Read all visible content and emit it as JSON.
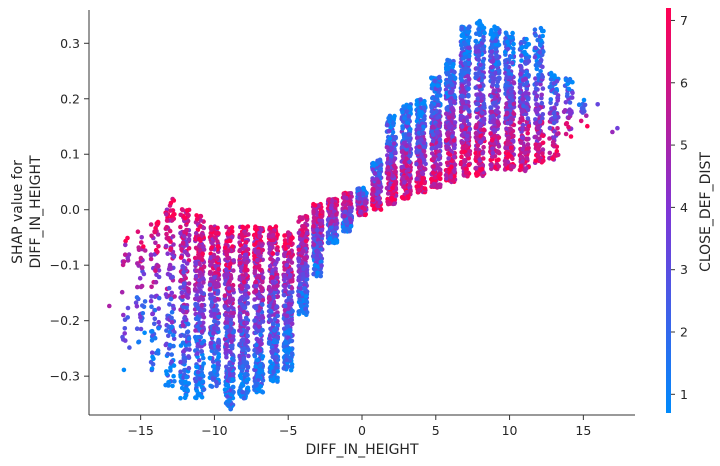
{
  "chart_data": {
    "type": "scatter",
    "title": "",
    "xlabel": "DIFF_IN_HEIGHT",
    "ylabel_lines": [
      "SHAP value for",
      "DIFF_IN_HEIGHT"
    ],
    "xlim": [
      -18.5,
      18.5
    ],
    "ylim": [
      -0.37,
      0.36
    ],
    "xticks": [
      -15,
      -10,
      -5,
      0,
      5,
      10,
      15
    ],
    "xtick_labels": [
      "−15",
      "−10",
      "−5",
      "0",
      "5",
      "10",
      "15"
    ],
    "yticks": [
      -0.3,
      -0.2,
      -0.1,
      0.0,
      0.1,
      0.2,
      0.3
    ],
    "ytick_labels": [
      "−0.3",
      "−0.2",
      "−0.1",
      "0.0",
      "0.1",
      "0.2",
      "0.3"
    ],
    "grid": false,
    "colorbar": {
      "label": "CLOSE_DEF_DIST",
      "range": [
        0.7,
        7.2
      ],
      "ticks": [
        1,
        2,
        3,
        4,
        5,
        6,
        7
      ],
      "tick_labels": [
        "1",
        "2",
        "3",
        "4",
        "5",
        "6",
        "7"
      ],
      "colors": [
        "#008afb",
        "#7e35d6",
        "#ff0052"
      ]
    },
    "columns": [
      {
        "x": -17,
        "low": -0.18,
        "high": -0.17,
        "count": 1
      },
      {
        "x": -16,
        "low": -0.29,
        "high": -0.05,
        "count": 22
      },
      {
        "x": -15,
        "low": -0.24,
        "high": -0.03,
        "count": 40
      },
      {
        "x": -14,
        "low": -0.29,
        "high": -0.02,
        "count": 70
      },
      {
        "x": -13,
        "low": -0.32,
        "high": 0.02,
        "count": 120
      },
      {
        "x": -12,
        "low": -0.34,
        "high": 0.01,
        "count": 190
      },
      {
        "x": -11,
        "low": -0.34,
        "high": -0.01,
        "count": 240
      },
      {
        "x": -10,
        "low": -0.32,
        "high": -0.03,
        "count": 260
      },
      {
        "x": -9,
        "low": -0.36,
        "high": -0.03,
        "count": 280
      },
      {
        "x": -8,
        "low": -0.34,
        "high": -0.03,
        "count": 280
      },
      {
        "x": -7,
        "low": -0.33,
        "high": -0.03,
        "count": 280
      },
      {
        "x": -6,
        "low": -0.31,
        "high": -0.03,
        "count": 260
      },
      {
        "x": -5,
        "low": -0.29,
        "high": -0.04,
        "count": 240
      },
      {
        "x": -4,
        "low": -0.19,
        "high": -0.01,
        "count": 200
      },
      {
        "x": -3,
        "low": -0.12,
        "high": 0.01,
        "count": 180
      },
      {
        "x": -2,
        "low": -0.06,
        "high": 0.02,
        "count": 150
      },
      {
        "x": -1,
        "low": -0.04,
        "high": 0.03,
        "count": 140
      },
      {
        "x": 0,
        "low": -0.01,
        "high": 0.04,
        "count": 140
      },
      {
        "x": 1,
        "low": 0.0,
        "high": 0.09,
        "count": 160
      },
      {
        "x": 2,
        "low": 0.01,
        "high": 0.17,
        "count": 200
      },
      {
        "x": 3,
        "low": 0.02,
        "high": 0.19,
        "count": 230
      },
      {
        "x": 4,
        "low": 0.03,
        "high": 0.2,
        "count": 240
      },
      {
        "x": 5,
        "low": 0.04,
        "high": 0.24,
        "count": 250
      },
      {
        "x": 6,
        "low": 0.05,
        "high": 0.27,
        "count": 260
      },
      {
        "x": 7,
        "low": 0.06,
        "high": 0.33,
        "count": 270
      },
      {
        "x": 8,
        "low": 0.06,
        "high": 0.34,
        "count": 270
      },
      {
        "x": 9,
        "low": 0.07,
        "high": 0.33,
        "count": 260
      },
      {
        "x": 10,
        "low": 0.07,
        "high": 0.32,
        "count": 240
      },
      {
        "x": 11,
        "low": 0.07,
        "high": 0.31,
        "count": 200
      },
      {
        "x": 12,
        "low": 0.08,
        "high": 0.33,
        "count": 150
      },
      {
        "x": 13,
        "low": 0.09,
        "high": 0.25,
        "count": 90
      },
      {
        "x": 14,
        "low": 0.13,
        "high": 0.24,
        "count": 40
      },
      {
        "x": 15,
        "low": 0.15,
        "high": 0.2,
        "count": 12
      },
      {
        "x": 16,
        "low": 0.19,
        "high": 0.19,
        "count": 1
      },
      {
        "x": 17,
        "low": 0.13,
        "high": 0.15,
        "count": 2
      }
    ]
  }
}
